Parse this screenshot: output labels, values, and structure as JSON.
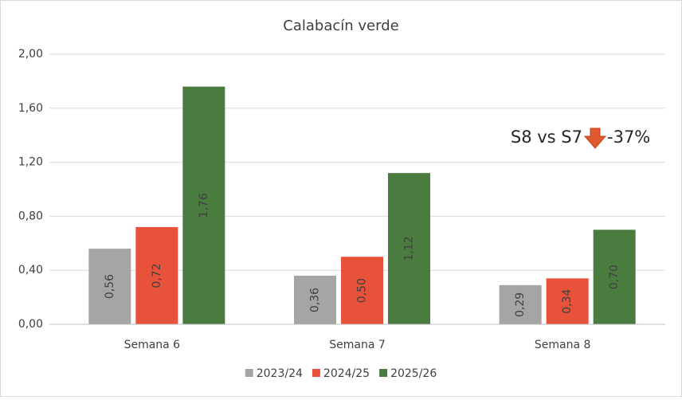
{
  "chart_data": {
    "type": "bar",
    "title": "Calabacín verde",
    "categories": [
      "Semana 6",
      "Semana 7",
      "Semana 8"
    ],
    "series": [
      {
        "name": "2023/24",
        "color": "#a5a5a5",
        "values": [
          0.56,
          0.36,
          0.29
        ],
        "value_labels": [
          "0,56",
          "0,36",
          "0,29"
        ]
      },
      {
        "name": "2024/25",
        "color": "#e8523a",
        "values": [
          0.72,
          0.5,
          0.34
        ],
        "value_labels": [
          "0,72",
          "0,50",
          "0,34"
        ]
      },
      {
        "name": "2025/26",
        "color": "#4a7c3f",
        "values": [
          1.76,
          1.12,
          0.7
        ],
        "value_labels": [
          "1,76",
          "1,12",
          "0,70"
        ]
      }
    ],
    "ylim": [
      0,
      2
    ],
    "yticks": [
      {
        "value": 0,
        "label": "0,00"
      },
      {
        "value": 0.4,
        "label": "0,40"
      },
      {
        "value": 0.8,
        "label": "0,80"
      },
      {
        "value": 1.2,
        "label": "1,20"
      },
      {
        "value": 1.6,
        "label": "1,60"
      },
      {
        "value": 2,
        "label": "2,00"
      }
    ],
    "grid": true,
    "legend": "bottom",
    "annotation": {
      "text": "S8 vs S7",
      "change": "-37%"
    }
  }
}
